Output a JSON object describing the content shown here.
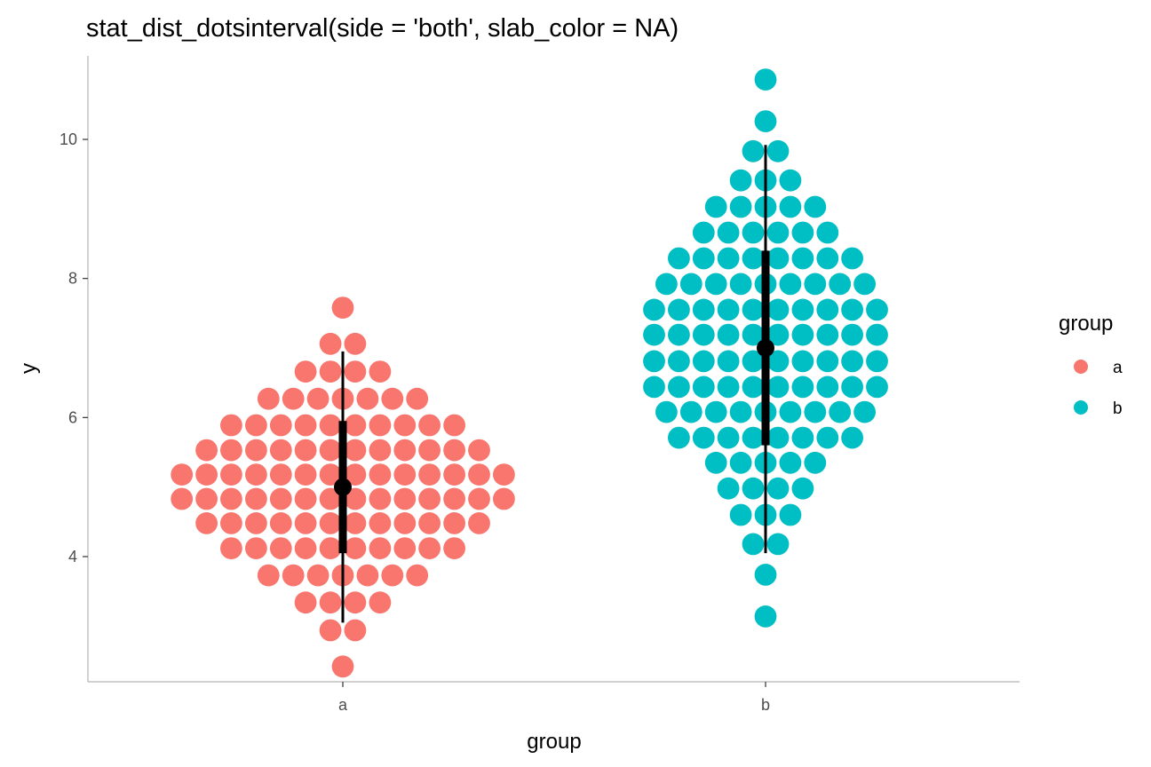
{
  "chart_data": {
    "type": "dotsinterval",
    "title": "stat_dist_dotsinterval(side = 'both', slab_color = NA)",
    "xlabel": "group",
    "ylabel": "y",
    "categories": [
      "a",
      "b"
    ],
    "ylim": [
      2.2,
      11.2
    ],
    "yticks": [
      4,
      6,
      8,
      10
    ],
    "ytick_labels": [
      "4",
      "6",
      "8",
      "10"
    ],
    "grid": false,
    "legend": {
      "title": "group",
      "placement": "right",
      "entries": [
        {
          "label": "a",
          "color": "#F8766D"
        },
        {
          "label": "b",
          "color": "#00BFC4"
        }
      ]
    },
    "series": [
      {
        "category": "a",
        "color": "#F8766D",
        "point": 5,
        "interval_66": [
          4.05,
          5.95
        ],
        "interval_95": [
          3.05,
          6.95
        ],
        "dot_rows": [
          {
            "y": 2.42,
            "count": 1
          },
          {
            "y": 2.94,
            "count": 2
          },
          {
            "y": 3.34,
            "count": 4
          },
          {
            "y": 3.73,
            "count": 7
          },
          {
            "y": 4.12,
            "count": 10
          },
          {
            "y": 4.48,
            "count": 12
          },
          {
            "y": 4.83,
            "count": 14
          },
          {
            "y": 5.18,
            "count": 14
          },
          {
            "y": 5.53,
            "count": 12
          },
          {
            "y": 5.89,
            "count": 10
          },
          {
            "y": 6.27,
            "count": 7
          },
          {
            "y": 6.66,
            "count": 4
          },
          {
            "y": 7.06,
            "count": 2
          },
          {
            "y": 7.58,
            "count": 1
          }
        ]
      },
      {
        "category": "b",
        "color": "#00BFC4",
        "point": 7,
        "interval_66": [
          5.6,
          8.4
        ],
        "interval_95": [
          4.05,
          9.92
        ],
        "dot_rows": [
          {
            "y": 3.14,
            "count": 1
          },
          {
            "y": 3.74,
            "count": 1
          },
          {
            "y": 4.18,
            "count": 2
          },
          {
            "y": 4.6,
            "count": 3
          },
          {
            "y": 4.98,
            "count": 4
          },
          {
            "y": 5.35,
            "count": 5
          },
          {
            "y": 5.71,
            "count": 8
          },
          {
            "y": 6.08,
            "count": 9
          },
          {
            "y": 6.44,
            "count": 10
          },
          {
            "y": 6.81,
            "count": 10
          },
          {
            "y": 7.19,
            "count": 10
          },
          {
            "y": 7.55,
            "count": 10
          },
          {
            "y": 7.92,
            "count": 9
          },
          {
            "y": 8.29,
            "count": 8
          },
          {
            "y": 8.66,
            "count": 6
          },
          {
            "y": 9.03,
            "count": 5
          },
          {
            "y": 9.41,
            "count": 3
          },
          {
            "y": 9.83,
            "count": 2
          },
          {
            "y": 10.26,
            "count": 1
          },
          {
            "y": 10.86,
            "count": 1
          }
        ]
      }
    ]
  }
}
